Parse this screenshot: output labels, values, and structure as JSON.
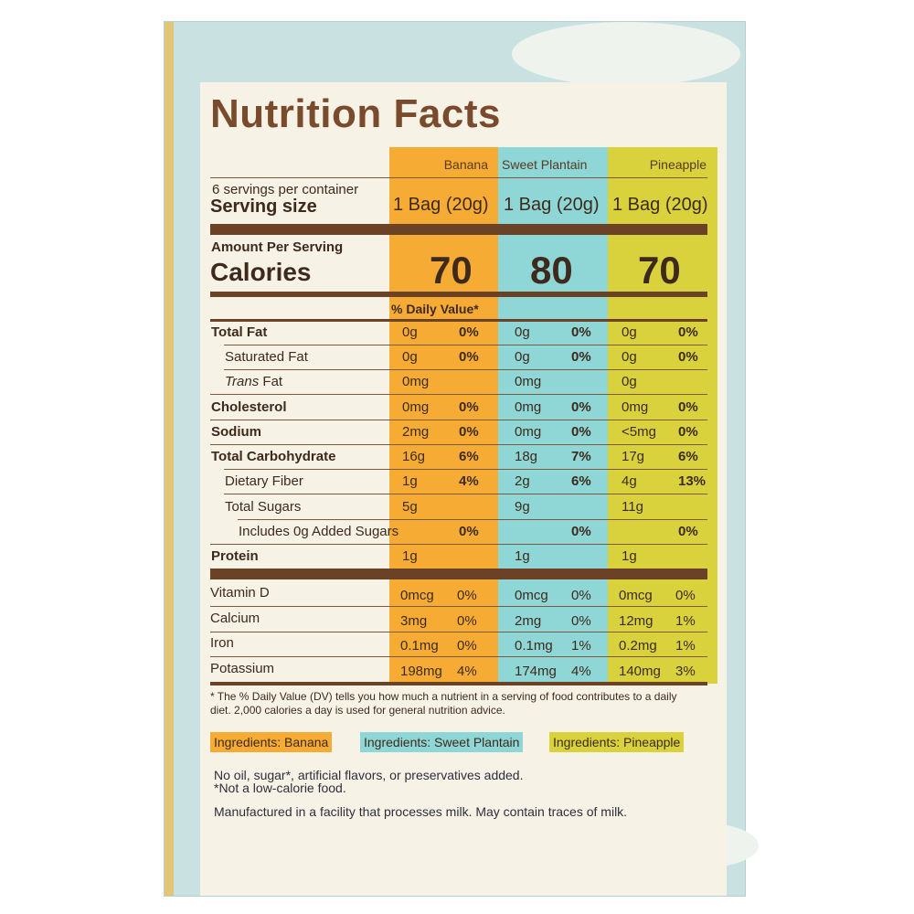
{
  "title": "Nutrition Facts",
  "columns": [
    "Banana",
    "Sweet Plantain",
    "Pineapple"
  ],
  "servings_per_container": "6 servings per container",
  "serving_size_label": "Serving size",
  "serving_sizes": [
    "1 Bag (20g)",
    "1 Bag (20g)",
    "1 Bag (20g)"
  ],
  "amount_per_serving": "Amount Per Serving",
  "calories_label": "Calories",
  "calories": [
    "70",
    "80",
    "70"
  ],
  "dv_header": "% Daily Value*",
  "nutrients": [
    {
      "name": "Total Fat",
      "b": [
        "0g",
        "0%"
      ],
      "s": [
        "0g",
        "0%"
      ],
      "p": [
        "0g",
        "0%"
      ]
    },
    {
      "name": "Saturated Fat",
      "b": [
        "0g",
        "0%"
      ],
      "s": [
        "0g",
        "0%"
      ],
      "p": [
        "0g",
        "0%"
      ]
    },
    {
      "name_italic": "Trans",
      "name_rest": " Fat",
      "b": [
        "0mg",
        ""
      ],
      "s": [
        "0mg",
        ""
      ],
      "p": [
        "0g",
        ""
      ]
    },
    {
      "name": "Cholesterol",
      "b": [
        "0mg",
        "0%"
      ],
      "s": [
        "0mg",
        "0%"
      ],
      "p": [
        "0mg",
        "0%"
      ]
    },
    {
      "name": "Sodium",
      "b": [
        "2mg",
        "0%"
      ],
      "s": [
        "0mg",
        "0%"
      ],
      "p": [
        "<5mg",
        "0%"
      ]
    },
    {
      "name": "Total Carbohydrate",
      "b": [
        "16g",
        "6%"
      ],
      "s": [
        "18g",
        "7%"
      ],
      "p": [
        "17g",
        "6%"
      ]
    },
    {
      "name": "Dietary Fiber",
      "b": [
        "1g",
        "4%"
      ],
      "s": [
        "2g",
        "6%"
      ],
      "p": [
        "4g",
        "13%"
      ]
    },
    {
      "name": "Total Sugars",
      "b": [
        "5g",
        ""
      ],
      "s": [
        "9g",
        ""
      ],
      "p": [
        "11g",
        ""
      ]
    },
    {
      "name": "Includes 0g Added Sugars",
      "b": [
        "",
        "0%"
      ],
      "s": [
        "",
        "0%"
      ],
      "p": [
        "",
        "0%"
      ]
    },
    {
      "name": "Protein",
      "b": [
        "1g",
        ""
      ],
      "s": [
        "1g",
        ""
      ],
      "p": [
        "1g",
        ""
      ]
    }
  ],
  "vitamins": [
    {
      "name": "Vitamin D",
      "b": [
        "0mcg",
        "0%"
      ],
      "s": [
        "0mcg",
        "0%"
      ],
      "p": [
        "0mcg",
        "0%"
      ]
    },
    {
      "name": "Calcium",
      "b": [
        "3mg",
        "0%"
      ],
      "s": [
        "2mg",
        "0%"
      ],
      "p": [
        "12mg",
        "1%"
      ]
    },
    {
      "name": "Iron",
      "b": [
        "0.1mg",
        "0%"
      ],
      "s": [
        "0.1mg",
        "1%"
      ],
      "p": [
        "0.2mg",
        "1%"
      ]
    },
    {
      "name": "Potassium",
      "b": [
        "198mg",
        "4%"
      ],
      "s": [
        "174mg",
        "4%"
      ],
      "p": [
        "140mg",
        "3%"
      ]
    }
  ],
  "footnote_1": "* The % Daily Value (DV) tells you how much a nutrient in a serving of food contributes to a daily",
  "footnote_2": "diet. 2,000 calories a day is used for general nutrition advice.",
  "ingredients": [
    "Ingredients: Banana",
    "Ingredients: Sweet Plantain",
    "Ingredients: Pineapple"
  ],
  "claim_1": "No oil, sugar*, artificial flavors, or preservatives added.",
  "claim_2": "*Not a low-calorie food.",
  "allergen": "Manufactured in a facility that processes milk. May contain traces of milk.",
  "colors": {
    "banana": "#f6ac34",
    "plantain": "#8fd6d6",
    "pineapple": "#d9d23c",
    "brown": "#6b4226"
  }
}
